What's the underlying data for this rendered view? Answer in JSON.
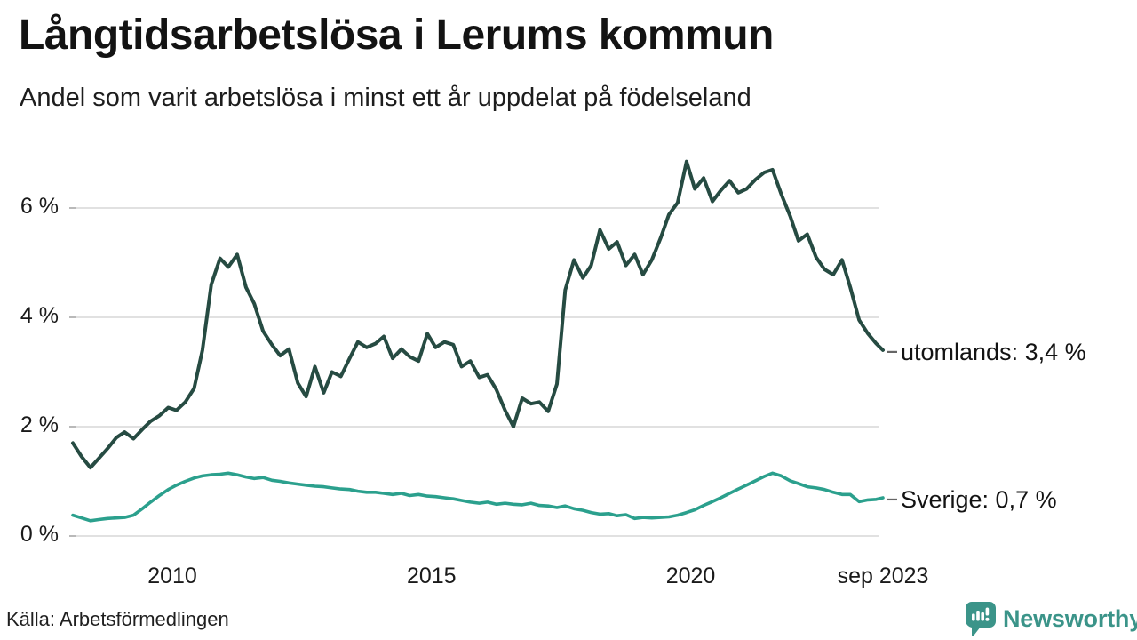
{
  "header": {
    "title": "Långtidsarbetslösa i Lerums kommun",
    "subtitle": "Andel som varit arbetslösa i minst ett år uppdelat på födelseland"
  },
  "source": {
    "label": "Källa: Arbetsförmedlingen"
  },
  "branding": {
    "wordmark": "Newsworthy",
    "icon": "chart-speech-bubble-icon",
    "color": "#3b9489"
  },
  "colors": {
    "line_abroad": "#264B42",
    "line_sweden": "#2BA08D",
    "gridline": "#e1e1e1",
    "axis_tick": "#b9b9b9",
    "end_dash": "#666666",
    "text": "#131313"
  },
  "chart_data": {
    "type": "line",
    "title": "Långtidsarbetslösa i Lerums kommun",
    "subtitle": "Andel som varit arbetslösa i minst ett år uppdelat på födelseland",
    "unit": "%",
    "legend_position": "end-of-line-labels",
    "x_axis": {
      "range": [
        2008.08,
        2023.71
      ],
      "ticks": [
        "2010",
        "2015",
        "2020",
        "sep 2023"
      ],
      "tick_positions": [
        2010,
        2015,
        2020,
        2023.71
      ]
    },
    "y_axis": {
      "range": [
        0,
        7.1
      ],
      "ticks": [
        "6 %",
        "4 %",
        "2 %",
        "0 %"
      ],
      "tick_values": [
        6,
        4,
        2,
        0
      ],
      "grid": true
    },
    "x": [
      2008.08,
      2008.25,
      2008.42,
      2008.58,
      2008.75,
      2008.92,
      2009.08,
      2009.25,
      2009.42,
      2009.58,
      2009.75,
      2009.92,
      2010.08,
      2010.25,
      2010.42,
      2010.58,
      2010.75,
      2010.92,
      2011.08,
      2011.25,
      2011.42,
      2011.58,
      2011.75,
      2011.92,
      2012.08,
      2012.25,
      2012.42,
      2012.58,
      2012.75,
      2012.92,
      2013.08,
      2013.25,
      2013.42,
      2013.58,
      2013.75,
      2013.92,
      2014.08,
      2014.25,
      2014.42,
      2014.58,
      2014.75,
      2014.92,
      2015.08,
      2015.25,
      2015.42,
      2015.58,
      2015.75,
      2015.92,
      2016.08,
      2016.25,
      2016.42,
      2016.58,
      2016.75,
      2016.92,
      2017.08,
      2017.25,
      2017.42,
      2017.58,
      2017.75,
      2017.92,
      2018.08,
      2018.25,
      2018.42,
      2018.58,
      2018.75,
      2018.92,
      2019.08,
      2019.25,
      2019.42,
      2019.58,
      2019.75,
      2019.92,
      2020.08,
      2020.25,
      2020.42,
      2020.58,
      2020.75,
      2020.92,
      2021.08,
      2021.25,
      2021.42,
      2021.58,
      2021.75,
      2021.92,
      2022.08,
      2022.25,
      2022.42,
      2022.58,
      2022.75,
      2022.92,
      2023.08,
      2023.25,
      2023.42,
      2023.58,
      2023.71
    ],
    "series": [
      {
        "name": "utomlands",
        "label": "utomlands: 3,4 %",
        "last_value": 3.4,
        "color": "#264B42",
        "values": [
          1.7,
          1.45,
          1.25,
          1.42,
          1.6,
          1.8,
          1.9,
          1.78,
          1.95,
          2.1,
          2.2,
          2.35,
          2.3,
          2.45,
          2.7,
          3.4,
          4.6,
          5.08,
          4.92,
          5.15,
          4.55,
          4.25,
          3.75,
          3.5,
          3.3,
          3.42,
          2.8,
          2.55,
          3.1,
          2.62,
          3.0,
          2.92,
          3.25,
          3.55,
          3.45,
          3.52,
          3.65,
          3.25,
          3.42,
          3.28,
          3.2,
          3.7,
          3.45,
          3.55,
          3.5,
          3.1,
          3.2,
          2.9,
          2.95,
          2.68,
          2.3,
          2.0,
          2.52,
          2.42,
          2.45,
          2.28,
          2.78,
          4.5,
          5.05,
          4.72,
          4.95,
          5.6,
          5.25,
          5.38,
          4.95,
          5.15,
          4.78,
          5.05,
          5.45,
          5.88,
          6.1,
          6.85,
          6.35,
          6.55,
          6.12,
          6.32,
          6.5,
          6.28,
          6.35,
          6.52,
          6.65,
          6.7,
          6.25,
          5.85,
          5.4,
          5.52,
          5.1,
          4.88,
          4.78,
          5.05,
          4.55,
          3.95,
          3.7,
          3.52,
          3.4
        ]
      },
      {
        "name": "sverige",
        "label": "Sverige: 0,7 %",
        "last_value": 0.7,
        "color": "#2BA08D",
        "values": [
          0.38,
          0.33,
          0.28,
          0.3,
          0.32,
          0.33,
          0.34,
          0.38,
          0.5,
          0.62,
          0.74,
          0.85,
          0.93,
          1.0,
          1.06,
          1.1,
          1.12,
          1.13,
          1.15,
          1.12,
          1.08,
          1.05,
          1.07,
          1.02,
          1.0,
          0.97,
          0.95,
          0.93,
          0.91,
          0.9,
          0.88,
          0.86,
          0.85,
          0.82,
          0.8,
          0.8,
          0.78,
          0.76,
          0.78,
          0.74,
          0.76,
          0.73,
          0.72,
          0.7,
          0.68,
          0.65,
          0.62,
          0.6,
          0.62,
          0.58,
          0.6,
          0.58,
          0.57,
          0.6,
          0.56,
          0.55,
          0.52,
          0.55,
          0.5,
          0.47,
          0.43,
          0.4,
          0.41,
          0.37,
          0.39,
          0.32,
          0.34,
          0.33,
          0.34,
          0.35,
          0.38,
          0.43,
          0.48,
          0.56,
          0.63,
          0.7,
          0.78,
          0.86,
          0.93,
          1.01,
          1.09,
          1.15,
          1.1,
          1.01,
          0.96,
          0.9,
          0.88,
          0.85,
          0.8,
          0.76,
          0.76,
          0.63,
          0.66,
          0.67,
          0.7
        ]
      }
    ]
  }
}
